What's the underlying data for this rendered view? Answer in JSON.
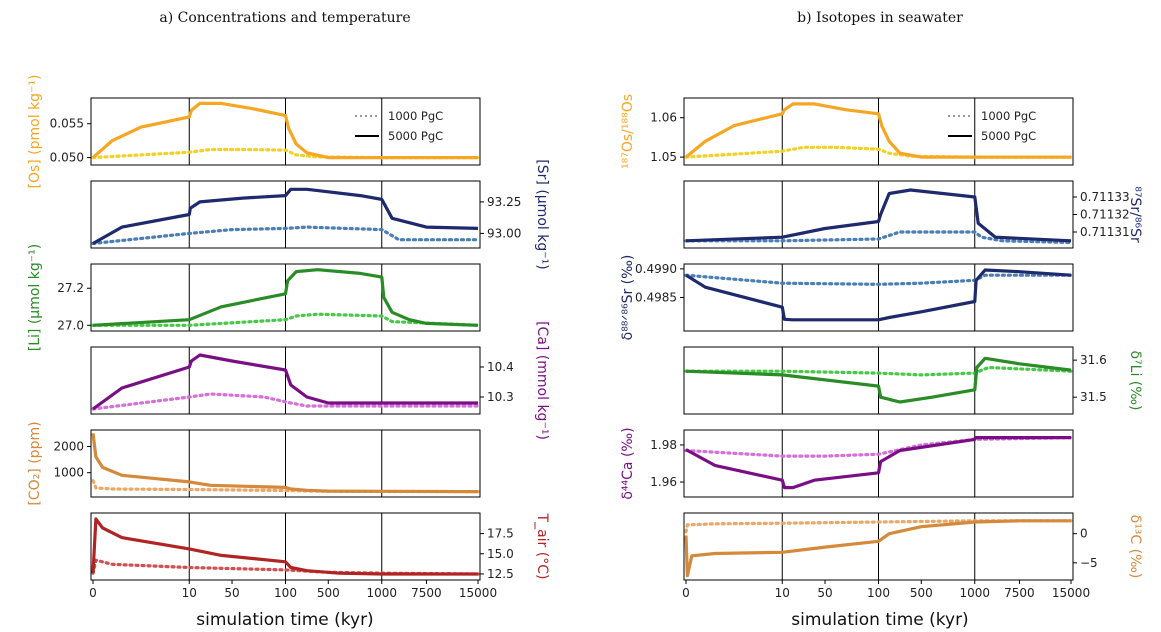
{
  "figure": {
    "panel_a_title": "a) Concentrations and temperature",
    "panel_b_title": "b) Isotopes in seawater",
    "xlabel": "simulation time (kyr)",
    "xticks": [
      "0",
      "10",
      "50",
      "100",
      "500",
      "1000",
      "7500",
      "15000"
    ]
  },
  "legend": {
    "dotted": "1000 PgC",
    "solid": "5000 PgC"
  },
  "chart_data": [
    {
      "type": "line",
      "panel": "a",
      "name": "os",
      "ylabel": "[Os] (pmol kg⁻¹)",
      "yside": "left",
      "color": "#f5a623",
      "dotcolor": "#f2d024",
      "ylim": [
        0.0492,
        0.0585
      ],
      "yticks": [
        0.05,
        0.055
      ],
      "ytick_labels": [
        "0.050",
        "0.055"
      ],
      "solid": [
        [
          0,
          0.05
        ],
        [
          2,
          0.0525
        ],
        [
          5,
          0.0545
        ],
        [
          10,
          0.056
        ],
        [
          12,
          0.057
        ],
        [
          20,
          0.058
        ],
        [
          40,
          0.058
        ],
        [
          70,
          0.0572
        ],
        [
          100,
          0.0562
        ],
        [
          130,
          0.0543
        ],
        [
          200,
          0.052
        ],
        [
          300,
          0.0507
        ],
        [
          500,
          0.05
        ],
        [
          700,
          0.05
        ],
        [
          1000,
          0.05
        ],
        [
          7500,
          0.05
        ],
        [
          15000,
          0.05
        ]
      ],
      "dotted": [
        [
          0,
          0.05
        ],
        [
          10,
          0.0508
        ],
        [
          30,
          0.0512
        ],
        [
          60,
          0.0512
        ],
        [
          100,
          0.0511
        ],
        [
          200,
          0.0504
        ],
        [
          400,
          0.0501
        ],
        [
          1000,
          0.05
        ],
        [
          15000,
          0.05
        ]
      ]
    },
    {
      "type": "line",
      "panel": "a",
      "name": "sr",
      "ylabel": "[Sr] (μmol kg⁻¹)",
      "yside": "right",
      "color": "#1f2a6e",
      "dotcolor": "#4a7eb5",
      "ylim": [
        92.9,
        93.4
      ],
      "yticks": [
        93.0,
        93.25
      ],
      "ytick_labels": [
        "93.00",
        "93.25"
      ],
      "solid": [
        [
          0,
          92.92
        ],
        [
          3,
          93.05
        ],
        [
          10,
          93.15
        ],
        [
          11,
          93.2
        ],
        [
          20,
          93.25
        ],
        [
          60,
          93.28
        ],
        [
          100,
          93.3
        ],
        [
          150,
          93.35
        ],
        [
          300,
          93.35
        ],
        [
          500,
          93.33
        ],
        [
          800,
          93.3
        ],
        [
          1000,
          93.27
        ],
        [
          2500,
          93.12
        ],
        [
          7500,
          93.05
        ],
        [
          15000,
          93.04
        ]
      ],
      "dotted": [
        [
          0,
          92.92
        ],
        [
          10,
          93.0
        ],
        [
          50,
          93.03
        ],
        [
          100,
          93.04
        ],
        [
          300,
          93.05
        ],
        [
          1000,
          93.03
        ],
        [
          3500,
          92.95
        ],
        [
          15000,
          92.95
        ]
      ]
    },
    {
      "type": "line",
      "panel": "a",
      "name": "li",
      "ylabel": "[Li] (μmol kg⁻¹)",
      "yside": "left",
      "color": "#2a8c26",
      "dotcolor": "#48c848",
      "ylim": [
        26.98,
        27.32
      ],
      "yticks": [
        27.0,
        27.2
      ],
      "ytick_labels": [
        "27.0",
        "27.2"
      ],
      "solid": [
        [
          0,
          27.0
        ],
        [
          10,
          27.03
        ],
        [
          40,
          27.1
        ],
        [
          100,
          27.17
        ],
        [
          120,
          27.24
        ],
        [
          200,
          27.29
        ],
        [
          400,
          27.3
        ],
        [
          800,
          27.28
        ],
        [
          1000,
          27.26
        ],
        [
          1300,
          27.15
        ],
        [
          2500,
          27.07
        ],
        [
          5000,
          27.03
        ],
        [
          7500,
          27.01
        ],
        [
          15000,
          27.0
        ]
      ],
      "dotted": [
        [
          0,
          27.0
        ],
        [
          10,
          27.0
        ],
        [
          100,
          27.03
        ],
        [
          200,
          27.05
        ],
        [
          400,
          27.06
        ],
        [
          1000,
          27.05
        ],
        [
          2500,
          27.02
        ],
        [
          15000,
          27.0
        ]
      ]
    },
    {
      "type": "line",
      "panel": "a",
      "name": "ca",
      "ylabel": "[Ca] (mmol kg⁻¹)",
      "yside": "right",
      "color": "#7a0f85",
      "dotcolor": "#d570d8",
      "ylim": [
        10.25,
        10.46
      ],
      "yticks": [
        10.3,
        10.4
      ],
      "ytick_labels": [
        "10.3",
        "10.4"
      ],
      "solid": [
        [
          0,
          10.26
        ],
        [
          3,
          10.33
        ],
        [
          10,
          10.4
        ],
        [
          12,
          10.42
        ],
        [
          20,
          10.44
        ],
        [
          50,
          10.42
        ],
        [
          100,
          10.39
        ],
        [
          150,
          10.34
        ],
        [
          300,
          10.3
        ],
        [
          500,
          10.28
        ],
        [
          1000,
          10.28
        ],
        [
          15000,
          10.28
        ]
      ],
      "dotted": [
        [
          0,
          10.26
        ],
        [
          10,
          10.3
        ],
        [
          30,
          10.31
        ],
        [
          80,
          10.3
        ],
        [
          150,
          10.28
        ],
        [
          300,
          10.27
        ],
        [
          1000,
          10.27
        ],
        [
          15000,
          10.27
        ]
      ]
    },
    {
      "type": "line",
      "panel": "a",
      "name": "co2",
      "ylabel": "[CO₂] (ppm)",
      "yside": "left",
      "color": "#d4893b",
      "dotcolor": "#e8a868",
      "ylim": [
        150,
        2550
      ],
      "yticks": [
        1000,
        2000
      ],
      "ytick_labels": [
        "1000",
        "2000"
      ],
      "solid": [
        [
          0,
          2500
        ],
        [
          0.3,
          1600
        ],
        [
          1,
          1200
        ],
        [
          3,
          900
        ],
        [
          10,
          650
        ],
        [
          30,
          520
        ],
        [
          100,
          440
        ],
        [
          150,
          380
        ],
        [
          300,
          330
        ],
        [
          500,
          300
        ],
        [
          1000,
          290
        ],
        [
          15000,
          280
        ]
      ],
      "dotted": [
        [
          0,
          700
        ],
        [
          0.3,
          420
        ],
        [
          2,
          380
        ],
        [
          10,
          360
        ],
        [
          100,
          320
        ],
        [
          500,
          290
        ],
        [
          1000,
          285
        ],
        [
          15000,
          280
        ]
      ]
    },
    {
      "type": "line",
      "panel": "a",
      "name": "tair",
      "ylabel": "T_air (°C)",
      "yside": "right",
      "color": "#b02424",
      "dotcolor": "#d05050",
      "ylim": [
        12.0,
        19.8
      ],
      "yticks": [
        12.5,
        15.0,
        17.5
      ],
      "ytick_labels": [
        "12.5",
        "15.0",
        "17.5"
      ],
      "solid": [
        [
          0,
          12.6
        ],
        [
          0.3,
          19.3
        ],
        [
          1,
          18.2
        ],
        [
          3,
          17.0
        ],
        [
          10,
          15.6
        ],
        [
          40,
          14.8
        ],
        [
          100,
          14.0
        ],
        [
          150,
          13.3
        ],
        [
          300,
          12.9
        ],
        [
          600,
          12.6
        ],
        [
          1000,
          12.5
        ],
        [
          15000,
          12.5
        ]
      ],
      "dotted": [
        [
          0,
          12.6
        ],
        [
          0.3,
          14.2
        ],
        [
          2,
          13.7
        ],
        [
          10,
          13.3
        ],
        [
          100,
          13.0
        ],
        [
          500,
          12.7
        ],
        [
          1000,
          12.6
        ],
        [
          15000,
          12.5
        ]
      ]
    },
    {
      "type": "line",
      "panel": "b",
      "name": "os_iso",
      "ylabel": "¹⁸⁷Os/¹⁸⁸Os",
      "yside": "left",
      "color": "#f5a623",
      "dotcolor": "#f2d024",
      "ylim": [
        1.0485,
        1.0645
      ],
      "yticks": [
        1.05,
        1.06
      ],
      "ytick_labels": [
        "1.05",
        "1.06"
      ],
      "solid": [
        [
          0,
          1.05
        ],
        [
          2,
          1.054
        ],
        [
          5,
          1.058
        ],
        [
          10,
          1.061
        ],
        [
          12,
          1.062
        ],
        [
          20,
          1.0635
        ],
        [
          40,
          1.0635
        ],
        [
          70,
          1.062
        ],
        [
          100,
          1.061
        ],
        [
          130,
          1.058
        ],
        [
          200,
          1.054
        ],
        [
          300,
          1.051
        ],
        [
          500,
          1.05
        ],
        [
          1000,
          1.05
        ],
        [
          15000,
          1.05
        ]
      ],
      "dotted": [
        [
          0,
          1.05
        ],
        [
          10,
          1.0515
        ],
        [
          30,
          1.0525
        ],
        [
          60,
          1.0525
        ],
        [
          100,
          1.052
        ],
        [
          200,
          1.051
        ],
        [
          400,
          1.0502
        ],
        [
          1000,
          1.05
        ],
        [
          15000,
          1.05
        ]
      ]
    },
    {
      "type": "line",
      "panel": "b",
      "name": "sr_iso",
      "ylabel": "⁸⁷Sr/⁸⁶Sr",
      "yside": "right",
      "color": "#1f2a6e",
      "dotcolor": "#4a7eb5",
      "ylim": [
        0.711302,
        0.711338
      ],
      "yticks": [
        0.71131,
        0.71132,
        0.71133
      ],
      "ytick_labels": [
        "0.71131",
        "0.71132",
        "0.71133"
      ],
      "solid": [
        [
          0,
          0.711305
        ],
        [
          10,
          0.711307
        ],
        [
          50,
          0.711312
        ],
        [
          100,
          0.711316
        ],
        [
          120,
          0.71132
        ],
        [
          200,
          0.711332
        ],
        [
          400,
          0.711334
        ],
        [
          700,
          0.711332
        ],
        [
          1000,
          0.71133
        ],
        [
          1500,
          0.711315
        ],
        [
          4000,
          0.711307
        ],
        [
          15000,
          0.711305
        ]
      ],
      "dotted": [
        [
          0,
          0.711305
        ],
        [
          10,
          0.711305
        ],
        [
          100,
          0.711306
        ],
        [
          300,
          0.71131
        ],
        [
          1000,
          0.71131
        ],
        [
          2000,
          0.711307
        ],
        [
          5000,
          0.711305
        ],
        [
          15000,
          0.711304
        ]
      ]
    },
    {
      "type": "line",
      "panel": "b",
      "name": "d88sr",
      "ylabel": "δ⁸⁸ᐟ⁸⁶Sr (‰)",
      "yside": "left",
      "color": "#1f2a6e",
      "dotcolor": "#4a7eb5",
      "ylim": [
        0.49795,
        0.49905
      ],
      "yticks": [
        0.4985,
        0.499
      ],
      "ytick_labels": [
        "0.4985",
        "0.4990"
      ],
      "solid": [
        [
          0,
          0.49889
        ],
        [
          2,
          0.49868
        ],
        [
          10,
          0.49833
        ],
        [
          12,
          0.49812
        ],
        [
          20,
          0.49811
        ],
        [
          100,
          0.49811
        ],
        [
          200,
          0.49815
        ],
        [
          500,
          0.49825
        ],
        [
          1000,
          0.49843
        ],
        [
          1200,
          0.4988
        ],
        [
          2500,
          0.49898
        ],
        [
          7500,
          0.49895
        ],
        [
          15000,
          0.49889
        ]
      ],
      "dotted": [
        [
          0,
          0.49889
        ],
        [
          10,
          0.49875
        ],
        [
          100,
          0.49873
        ],
        [
          500,
          0.49875
        ],
        [
          1000,
          0.4988
        ],
        [
          2500,
          0.49889
        ],
        [
          15000,
          0.49889
        ]
      ]
    },
    {
      "type": "line",
      "panel": "b",
      "name": "d7li",
      "ylabel": "δ⁷Li (‰)",
      "yside": "right",
      "color": "#2a8c26",
      "dotcolor": "#48c848",
      "ylim": [
        31.46,
        31.63
      ],
      "yticks": [
        31.5,
        31.6
      ],
      "ytick_labels": [
        "31.5",
        "31.6"
      ],
      "solid": [
        [
          0,
          31.57
        ],
        [
          10,
          31.56
        ],
        [
          100,
          31.53
        ],
        [
          120,
          31.5
        ],
        [
          300,
          31.487
        ],
        [
          600,
          31.5
        ],
        [
          1000,
          31.52
        ],
        [
          1300,
          31.58
        ],
        [
          2500,
          31.605
        ],
        [
          7500,
          31.59
        ],
        [
          15000,
          31.573
        ]
      ],
      "dotted": [
        [
          0,
          31.57
        ],
        [
          10,
          31.57
        ],
        [
          100,
          31.565
        ],
        [
          500,
          31.56
        ],
        [
          1000,
          31.565
        ],
        [
          3000,
          31.58
        ],
        [
          15000,
          31.57
        ]
      ]
    },
    {
      "type": "line",
      "panel": "b",
      "name": "d44ca",
      "ylabel": "δ⁴⁴Ca (‰)",
      "yside": "left",
      "color": "#7a0f85",
      "dotcolor": "#d570d8",
      "ylim": [
        1.953,
        1.987
      ],
      "yticks": [
        1.96,
        1.98
      ],
      "ytick_labels": [
        "1.96",
        "1.98"
      ],
      "solid": [
        [
          0,
          1.9775
        ],
        [
          3,
          1.969
        ],
        [
          10,
          1.961
        ],
        [
          12,
          1.957
        ],
        [
          20,
          1.957
        ],
        [
          40,
          1.961
        ],
        [
          100,
          1.965
        ],
        [
          120,
          1.971
        ],
        [
          300,
          1.977
        ],
        [
          1000,
          1.983
        ],
        [
          1100,
          1.984
        ],
        [
          15000,
          1.984
        ]
      ],
      "dotted": [
        [
          0,
          1.977
        ],
        [
          10,
          1.974
        ],
        [
          50,
          1.974
        ],
        [
          100,
          1.975
        ],
        [
          500,
          1.98
        ],
        [
          1000,
          1.983
        ],
        [
          15000,
          1.984
        ]
      ]
    },
    {
      "type": "line",
      "panel": "b",
      "name": "d13c",
      "ylabel": "δ¹³C (‰)",
      "yside": "right",
      "color": "#d4893b",
      "dotcolor": "#e8a868",
      "ylim": [
        -7.6,
        3.2
      ],
      "yticks": [
        -5,
        0
      ],
      "ytick_labels": [
        "−5",
        "0"
      ],
      "solid": [
        [
          0,
          -0.3
        ],
        [
          0.15,
          -7.2
        ],
        [
          0.6,
          -3.8
        ],
        [
          3,
          -3.4
        ],
        [
          10,
          -3.2
        ],
        [
          50,
          -2.3
        ],
        [
          100,
          -1.3
        ],
        [
          200,
          0.0
        ],
        [
          500,
          1.2
        ],
        [
          1000,
          2.0
        ],
        [
          7500,
          2.2
        ],
        [
          15000,
          2.2
        ]
      ],
      "dotted": [
        [
          0,
          0.3
        ],
        [
          0.15,
          1.5
        ],
        [
          3,
          1.7
        ],
        [
          10,
          1.8
        ],
        [
          100,
          2.0
        ],
        [
          1000,
          2.2
        ],
        [
          15000,
          2.2
        ]
      ]
    }
  ]
}
